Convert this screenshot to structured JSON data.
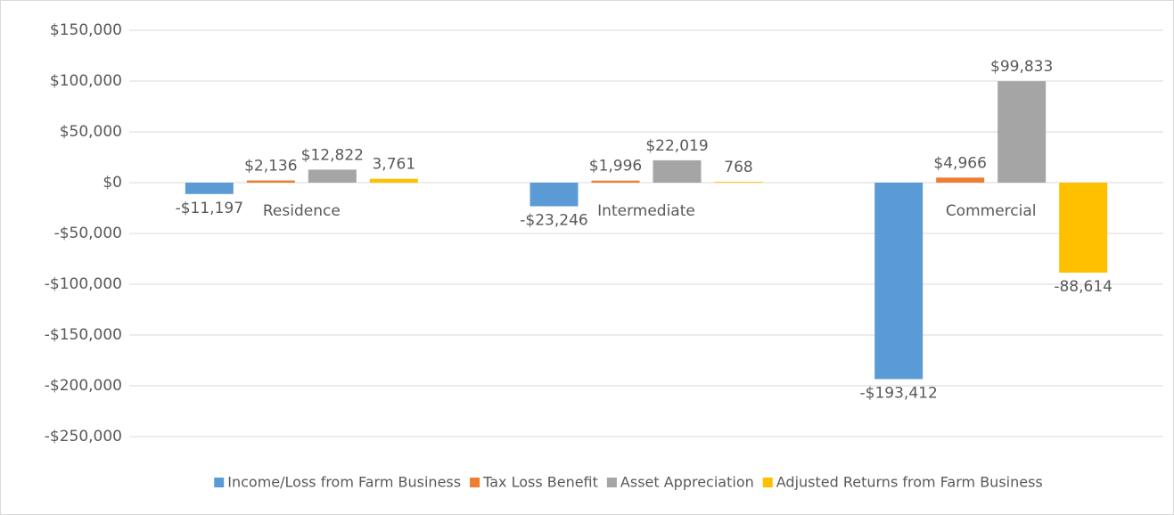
{
  "chart_data": {
    "type": "bar",
    "categories": [
      "Residence",
      "Intermediate",
      "Commercial"
    ],
    "series": [
      {
        "name": "Income/Loss from Farm Business",
        "color": "#5b9bd5",
        "values": [
          -11197,
          -23246,
          -193412
        ],
        "value_labels": [
          "-$11,197",
          "-$23,246",
          "-$193,412"
        ]
      },
      {
        "name": "Tax Loss Benefit",
        "color": "#ed7d31",
        "values": [
          2136,
          1996,
          4966
        ],
        "value_labels": [
          "$2,136",
          "$1,996",
          "$4,966"
        ]
      },
      {
        "name": "Asset Appreciation",
        "color": "#a5a5a5",
        "values": [
          12822,
          22019,
          99833
        ],
        "value_labels": [
          "$12,822",
          "$22,019",
          "$99,833"
        ]
      },
      {
        "name": "Adjusted Returns from Farm Business",
        "color": "#ffc000",
        "values": [
          3761,
          768,
          -88614
        ],
        "value_labels": [
          "3,761",
          "768",
          "-88,614"
        ]
      }
    ],
    "ylim": [
      -250000,
      150000
    ],
    "yticks": [
      {
        "value": -250000,
        "label": "-$250,000"
      },
      {
        "value": -200000,
        "label": "-$200,000"
      },
      {
        "value": -150000,
        "label": "-$150,000"
      },
      {
        "value": -100000,
        "label": "-$100,000"
      },
      {
        "value": -50000,
        "label": "-$50,000"
      },
      {
        "value": 0,
        "label": "$0"
      },
      {
        "value": 50000,
        "label": "$50,000"
      },
      {
        "value": 100000,
        "label": "$100,000"
      },
      {
        "value": 150000,
        "label": "$150,000"
      }
    ],
    "grid": true,
    "legend": "bottom"
  }
}
